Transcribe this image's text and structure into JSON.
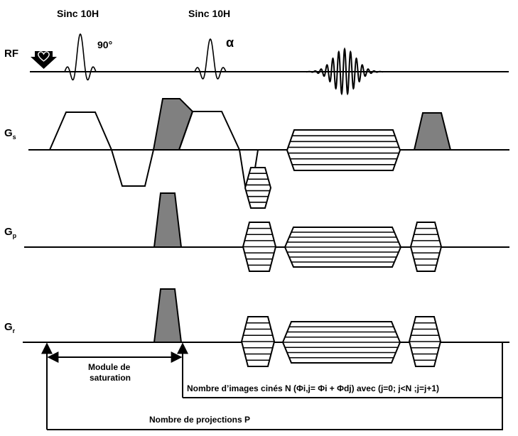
{
  "pulses": {
    "sinc1": "Sinc 10H",
    "sinc2": "Sinc 10H",
    "flip1": "90°",
    "flip2": "α"
  },
  "channels": {
    "rf": "RF",
    "gs_main": "G",
    "gs_sub": "s",
    "gp_main": "G",
    "gp_sub": "p",
    "gr_main": "G",
    "gr_sub": "r"
  },
  "annotations": {
    "module_line1": "Module de",
    "module_line2": "saturation",
    "cine": "Nombre d’images cinés N  (Φi,j= Φi + Φdj) avec (j=0; j<N ;j=j+1)",
    "projections": "Nombre de projections P"
  },
  "colors": {
    "line": "#000000",
    "fill_gray": "#808080",
    "background": "#ffffff"
  },
  "icons": {
    "trigger": "heart-trigger-arrow-icon"
  }
}
